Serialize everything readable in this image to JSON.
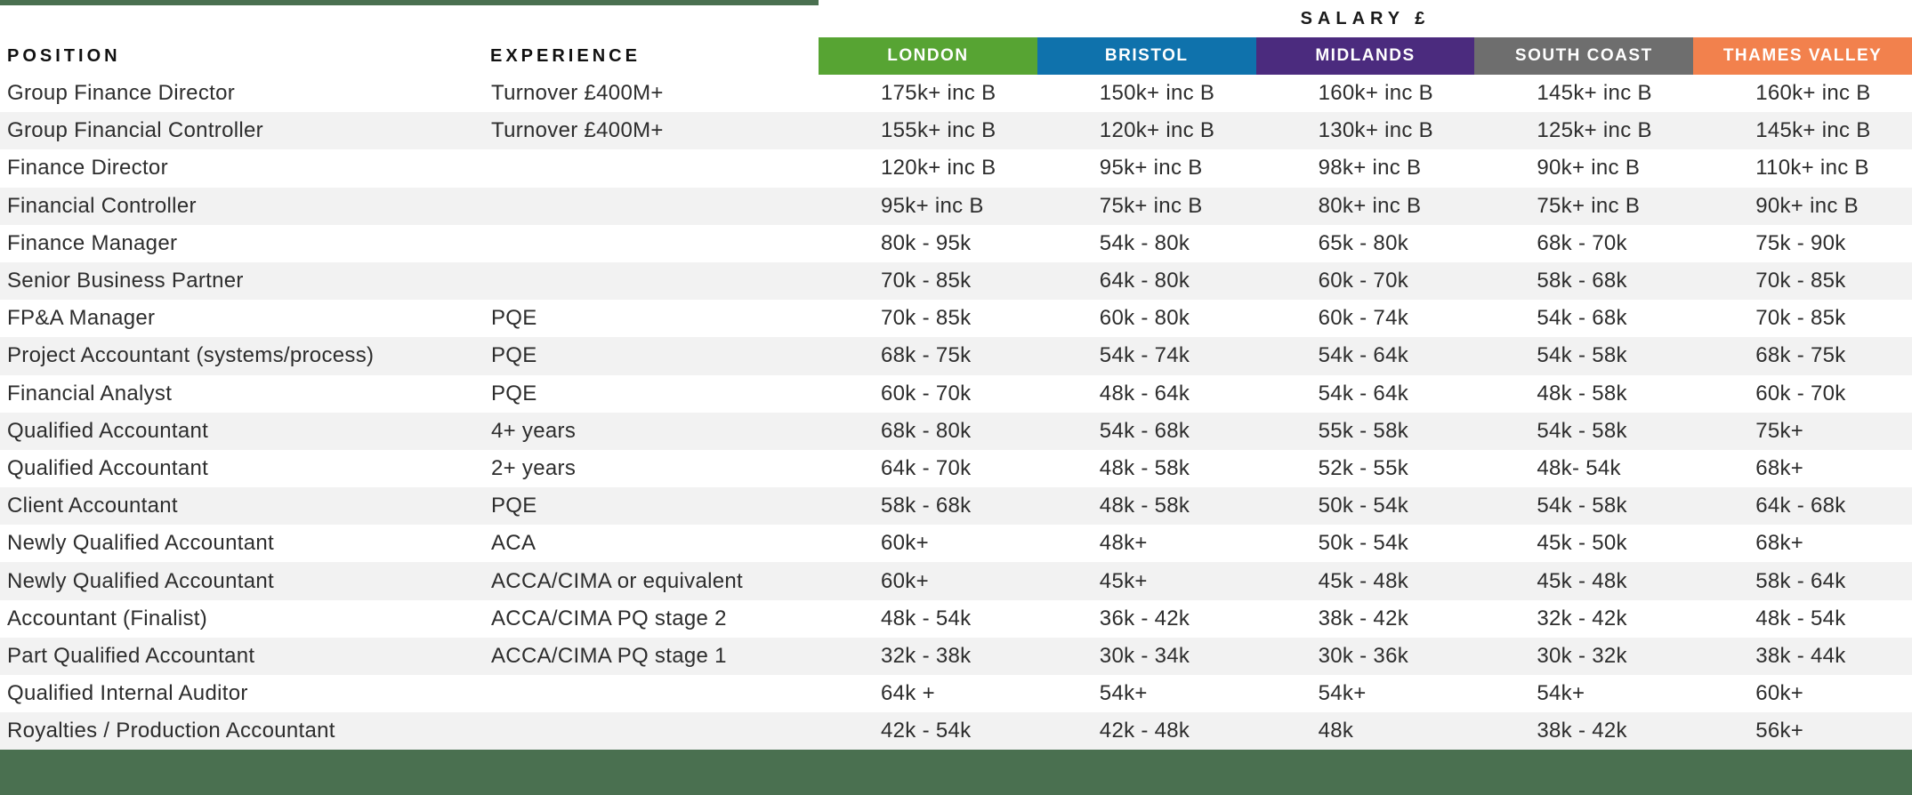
{
  "page": {
    "top_bar_color": "#4A7050",
    "footer_color": "#4A7050",
    "alt_row_color": "#F2F2F2"
  },
  "table": {
    "salary_header": "SALARY £",
    "position_header": "POSITION",
    "experience_header": "EXPERIENCE",
    "regions": [
      {
        "label": "LONDON",
        "color": "#57A433"
      },
      {
        "label": "BRISTOL",
        "color": "#0F72AC"
      },
      {
        "label": "MIDLANDS",
        "color": "#4B2B7E"
      },
      {
        "label": "SOUTH COAST",
        "color": "#6E6E6E"
      },
      {
        "label": "THAMES VALLEY",
        "color": "#F2814D"
      }
    ],
    "rows": [
      {
        "position": "Group Finance Director",
        "experience": "Turnover £400M+",
        "values": [
          "175k+ inc B",
          "150k+ inc B",
          "160k+ inc B",
          "145k+ inc B",
          "160k+ inc B"
        ]
      },
      {
        "position": "Group Financial Controller",
        "experience": "Turnover £400M+",
        "values": [
          "155k+ inc B",
          "120k+ inc B",
          "130k+ inc B",
          "125k+ inc B",
          "145k+ inc B"
        ]
      },
      {
        "position": "Finance Director",
        "experience": "",
        "values": [
          "120k+ inc B",
          "95k+ inc B",
          "98k+ inc B",
          "90k+ inc B",
          "110k+ inc B"
        ]
      },
      {
        "position": "Financial Controller",
        "experience": "",
        "values": [
          "95k+ inc B",
          "75k+ inc B",
          "80k+ inc B",
          "75k+ inc B",
          "90k+ inc B"
        ]
      },
      {
        "position": "Finance Manager",
        "experience": "",
        "values": [
          "80k - 95k",
          "54k - 80k",
          "65k - 80k",
          "68k - 70k",
          "75k - 90k"
        ]
      },
      {
        "position": "Senior Business Partner",
        "experience": "",
        "values": [
          "70k - 85k",
          "64k - 80k",
          "60k - 70k",
          "58k - 68k",
          "70k - 85k"
        ]
      },
      {
        "position": "FP&A Manager",
        "experience": "PQE",
        "values": [
          "70k - 85k",
          "60k - 80k",
          "60k - 74k",
          "54k - 68k",
          "70k - 85k"
        ]
      },
      {
        "position": "Project Accountant (systems/process)",
        "experience": "PQE",
        "values": [
          "68k - 75k",
          "54k - 74k",
          "54k - 64k",
          "54k - 58k",
          "68k - 75k"
        ]
      },
      {
        "position": "Financial Analyst",
        "experience": "PQE",
        "values": [
          "60k - 70k",
          "48k - 64k",
          "54k - 64k",
          "48k - 58k",
          "60k - 70k"
        ]
      },
      {
        "position": "Qualified Accountant",
        "experience": "4+ years",
        "values": [
          "68k - 80k",
          "54k - 68k",
          "55k - 58k",
          "54k - 58k",
          "75k+"
        ]
      },
      {
        "position": "Qualified Accountant",
        "experience": "2+ years",
        "values": [
          "64k - 70k",
          "48k - 58k",
          "52k - 55k",
          "48k- 54k",
          "68k+"
        ]
      },
      {
        "position": "Client Accountant",
        "experience": "PQE",
        "values": [
          "58k - 68k",
          "48k - 58k",
          "50k - 54k",
          "54k - 58k",
          "64k - 68k"
        ]
      },
      {
        "position": "Newly Qualified Accountant",
        "experience": "ACA",
        "values": [
          "60k+",
          "48k+",
          "50k - 54k",
          "45k - 50k",
          "68k+"
        ]
      },
      {
        "position": "Newly Qualified Accountant",
        "experience": "ACCA/CIMA or equivalent",
        "values": [
          "60k+",
          "45k+",
          "45k - 48k",
          "45k - 48k",
          "58k - 64k"
        ]
      },
      {
        "position": "Accountant (Finalist)",
        "experience": "ACCA/CIMA PQ stage 2",
        "values": [
          "48k - 54k",
          "36k - 42k",
          "38k - 42k",
          "32k - 42k",
          "48k - 54k"
        ]
      },
      {
        "position": "Part Qualified Accountant",
        "experience": "ACCA/CIMA PQ stage 1",
        "values": [
          "32k - 38k",
          "30k - 34k",
          "30k - 36k",
          "30k - 32k",
          "38k - 44k"
        ]
      },
      {
        "position": "Qualified Internal Auditor",
        "experience": "",
        "values": [
          "64k +",
          "54k+",
          "54k+",
          "54k+",
          "60k+"
        ]
      },
      {
        "position": "Royalties / Production Accountant",
        "experience": "",
        "values": [
          "42k - 54k",
          "42k - 48k",
          "48k",
          "38k - 42k",
          "56k+"
        ]
      }
    ]
  }
}
